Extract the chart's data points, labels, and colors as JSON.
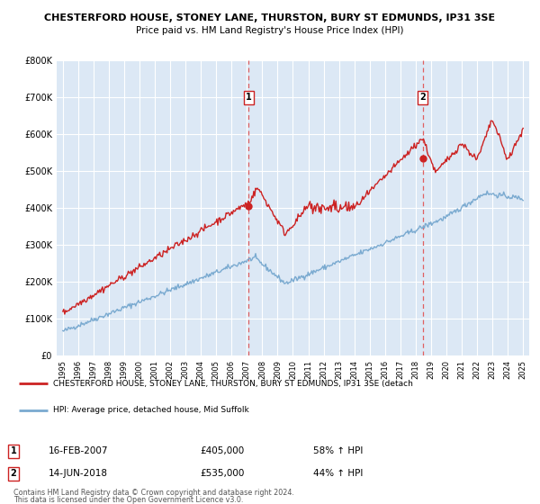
{
  "title_line1": "CHESTERFORD HOUSE, STONEY LANE, THURSTON, BURY ST EDMUNDS, IP31 3SE",
  "title_line2": "Price paid vs. HM Land Registry's House Price Index (HPI)",
  "bg_color": "#ffffff",
  "plot_bg_color": "#dce8f5",
  "grid_color": "#ffffff",
  "red_color": "#cc2222",
  "blue_color": "#7aaad0",
  "dashed_color": "#e06060",
  "ylim": [
    0,
    800000
  ],
  "yticks": [
    0,
    100000,
    200000,
    300000,
    400000,
    500000,
    600000,
    700000,
    800000
  ],
  "ytick_labels": [
    "£0",
    "£100K",
    "£200K",
    "£300K",
    "£400K",
    "£500K",
    "£600K",
    "£700K",
    "£800K"
  ],
  "xlim_start": 1994.6,
  "xlim_end": 2025.4,
  "xticks": [
    1995,
    1996,
    1997,
    1998,
    1999,
    2000,
    2001,
    2002,
    2003,
    2004,
    2005,
    2006,
    2007,
    2008,
    2009,
    2010,
    2011,
    2012,
    2013,
    2014,
    2015,
    2016,
    2017,
    2018,
    2019,
    2020,
    2021,
    2022,
    2023,
    2024,
    2025
  ],
  "sale1_x": 2007.12,
  "sale1_y": 405000,
  "sale1_label": "1",
  "sale1_date": "16-FEB-2007",
  "sale1_price": "£405,000",
  "sale1_hpi": "58% ↑ HPI",
  "sale2_x": 2018.45,
  "sale2_y": 535000,
  "sale2_label": "2",
  "sale2_date": "14-JUN-2018",
  "sale2_price": "£535,000",
  "sale2_hpi": "44% ↑ HPI",
  "legend_line1": "CHESTERFORD HOUSE, STONEY LANE, THURSTON, BURY ST EDMUNDS, IP31 3SE (detach",
  "legend_line2": "HPI: Average price, detached house, Mid Suffolk",
  "footer_line1": "Contains HM Land Registry data © Crown copyright and database right 2024.",
  "footer_line2": "This data is licensed under the Open Government Licence v3.0."
}
